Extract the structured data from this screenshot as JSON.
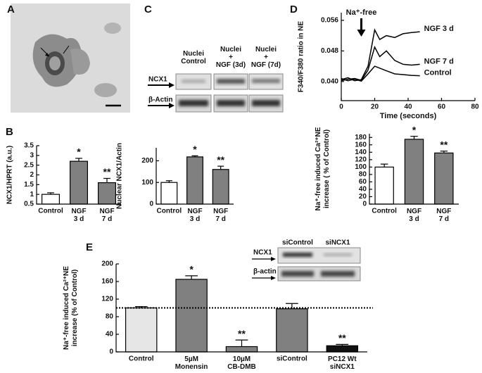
{
  "panels": [
    "A",
    "B",
    "C",
    "D",
    "E"
  ],
  "blots": [
    {
      "lanes": [
        "Nuclei\nControl",
        "Nuclei\n+\nNGF (3d)",
        "Nuclei\n+\nNGF (7d)"
      ],
      "rows": [
        "NCX1",
        "β-Actin"
      ]
    },
    {
      "lanes": [
        "siControl",
        "siNCX1"
      ],
      "rows": [
        "NCX1",
        "β-actin"
      ]
    }
  ],
  "chart_data": [
    {
      "type": "bar",
      "ylabel": "NCX1/HPRT (a.u.)",
      "categories": [
        "Control",
        "NGF\n3 d",
        "NGF\n7 d"
      ],
      "values": [
        1.0,
        2.7,
        1.6
      ],
      "errors": [
        0.08,
        0.15,
        0.22
      ],
      "annotations": [
        null,
        "*",
        "**"
      ],
      "colors": [
        "#ffffff",
        "#808080",
        "#808080"
      ],
      "ylim": [
        0.5,
        3.5
      ],
      "yticks": [
        0.5,
        1,
        1.5,
        2,
        2.5,
        3,
        3.5
      ]
    },
    {
      "type": "bar",
      "ylabel": "Nuclear NCX1/Actin",
      "categories": [
        "Control",
        "NGF\n3 d",
        "NGF\n7 d"
      ],
      "values": [
        100,
        218,
        160
      ],
      "errors": [
        8,
        5,
        15
      ],
      "annotations": [
        null,
        "*",
        "**"
      ],
      "colors": [
        "#ffffff",
        "#808080",
        "#808080"
      ],
      "ylim": [
        0,
        260
      ],
      "yticks": [
        0,
        100,
        200
      ]
    },
    {
      "type": "line",
      "xlabel": "Time (seconds)",
      "ylabel": "F340/F380 ratio in NE",
      "annotation": "Na⁺-free",
      "x": [
        0,
        4,
        8,
        12,
        16,
        20,
        23,
        27,
        32,
        37,
        42,
        47
      ],
      "series": [
        {
          "name": "NGF 3 d",
          "color": "#000000",
          "values": [
            0.0405,
            0.041,
            0.0402,
            0.0405,
            0.044,
            0.0535,
            0.051,
            0.052,
            0.0515,
            0.0525,
            0.0528,
            0.053
          ]
        },
        {
          "name": "NGF 7 d",
          "color": "#000000",
          "values": [
            0.0402,
            0.0406,
            0.0408,
            0.0403,
            0.043,
            0.049,
            0.0465,
            0.048,
            0.0455,
            0.0445,
            0.0443,
            0.0445
          ]
        },
        {
          "name": "Control",
          "color": "#000000",
          "values": [
            0.0408,
            0.0402,
            0.0406,
            0.0401,
            0.042,
            0.044,
            0.0435,
            0.0428,
            0.042,
            0.0418,
            0.0416,
            0.0415
          ]
        }
      ],
      "xlim": [
        0,
        80
      ],
      "xticks": [
        0,
        20,
        40,
        60,
        80
      ],
      "ylim": [
        0.035,
        0.058
      ],
      "yticks": [
        {
          "value": 0.04,
          "label": "0.040"
        },
        {
          "value": 0.048,
          "label": "0.048"
        },
        {
          "value": 0.056,
          "label": "0.056"
        }
      ]
    },
    {
      "type": "bar",
      "ylabel": "Na⁺-free induced Ca²⁺NE\nincrease ( % of Control)",
      "categories": [
        "Control",
        "NGF\n3 d",
        "NGF\n7 d"
      ],
      "values": [
        100,
        175,
        138
      ],
      "errors": [
        8,
        8,
        5
      ],
      "annotations": [
        null,
        "*",
        "**"
      ],
      "colors": [
        "#ffffff",
        "#808080",
        "#808080"
      ],
      "ylim": [
        0,
        190
      ],
      "yticks": [
        0,
        20,
        40,
        60,
        80,
        100,
        120,
        140,
        160,
        180
      ]
    },
    {
      "type": "bar",
      "ylabel": "Na⁺-free induced Ca²⁺NE\nincrease (% of Control)",
      "categories": [
        "Control",
        "5µM\nMonensin",
        "10µM\nCB-DMB",
        "siControl",
        "PC12 Wt\nsiNCX1"
      ],
      "values": [
        100,
        165,
        12,
        98,
        14
      ],
      "errors": [
        3,
        8,
        15,
        12,
        3
      ],
      "annotations": [
        null,
        "*",
        "**",
        null,
        "**"
      ],
      "colors": [
        "#e6e6e6",
        "#808080",
        "#808080",
        "#808080",
        "#111111"
      ],
      "reference_line": 100,
      "ylim": [
        0,
        200
      ],
      "yticks": [
        0,
        40,
        80,
        120,
        160,
        200
      ]
    }
  ]
}
